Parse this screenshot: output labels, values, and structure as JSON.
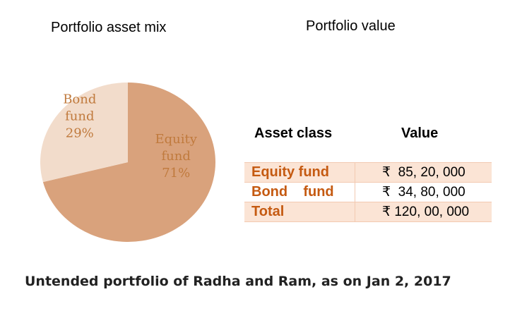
{
  "titles": {
    "pie": "Portfolio asset mix",
    "table": "Portfolio value"
  },
  "chart_data": {
    "type": "pie",
    "title": "Portfolio asset mix",
    "slices": [
      {
        "name_lines": [
          "Equity",
          "fund"
        ],
        "value": 71,
        "value_label": "71%",
        "color": "#d9a27c"
      },
      {
        "name_lines": [
          "Bond",
          "fund"
        ],
        "value": 29,
        "value_label": "29%",
        "color": "#f2dccb"
      }
    ],
    "label_color": "#c07a3d"
  },
  "table": {
    "headers": [
      "Asset class",
      "Value"
    ],
    "rows": [
      {
        "asset_class": "Equity fund",
        "value": "₹  85, 20, 000"
      },
      {
        "asset_class": "Bond    fund",
        "value": "₹  34, 80, 000"
      },
      {
        "asset_class": "Total",
        "value": "₹ 120, 00, 000"
      }
    ],
    "accent_color": "#c55a11",
    "shade_color": "#fbe4d5"
  },
  "footer": "Untended portfolio of Radha and Ram, as on   Jan 2, 2017"
}
